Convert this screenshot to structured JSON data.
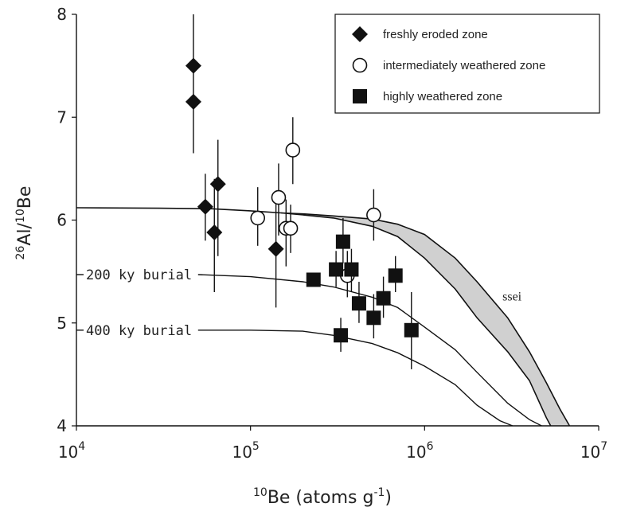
{
  "chart_data": {
    "type": "scatter",
    "xscale": "log",
    "xlim": [
      10000,
      10000000
    ],
    "ylim": [
      4,
      8
    ],
    "xlabel": {
      "base": "Be (atoms g",
      "mass": "10",
      "exp": "-1",
      "close": ")"
    },
    "ylabel": {
      "num_mass": "26",
      "num_el": "Al/",
      "den_mass": "10",
      "den_el": "Be"
    },
    "xticks": [
      {
        "value": 10000,
        "base": "10",
        "exp": "4"
      },
      {
        "value": 100000,
        "base": "10",
        "exp": "5"
      },
      {
        "value": 1000000,
        "base": "10",
        "exp": "6"
      },
      {
        "value": 10000000,
        "base": "10",
        "exp": "7"
      }
    ],
    "yticks": [
      {
        "value": 4,
        "label": "4"
      },
      {
        "value": 5,
        "label": "5"
      },
      {
        "value": 6,
        "label": "6"
      },
      {
        "value": 7,
        "label": "7"
      },
      {
        "value": 8,
        "label": "8"
      }
    ],
    "legend": {
      "position": "top-right",
      "entries": [
        {
          "marker": "diamond",
          "label": "freshly eroded zone"
        },
        {
          "marker": "open-circle",
          "label": "intermediately weathered zone"
        },
        {
          "marker": "square",
          "label": "highly weathered zone"
        }
      ]
    },
    "annotations": {
      "burial200": "200 ky burial",
      "burial400": "400 ky burial",
      "ssei": "ssei"
    },
    "curves": {
      "ssei_upper": [
        [
          10000,
          6.12
        ],
        [
          30000,
          6.115
        ],
        [
          60000,
          6.11
        ],
        [
          100000,
          6.09
        ],
        [
          150000,
          6.07
        ],
        [
          200000,
          6.05
        ],
        [
          300000,
          6.02
        ],
        [
          500000,
          5.94
        ],
        [
          700000,
          5.84
        ],
        [
          1000000,
          5.63
        ],
        [
          1500000,
          5.33
        ],
        [
          2000000,
          5.05
        ],
        [
          3000000,
          4.72
        ],
        [
          4000000,
          4.44
        ],
        [
          5000000,
          4.08
        ],
        [
          5300000,
          4.0
        ]
      ],
      "ssei_lower": [
        [
          150000,
          6.07
        ],
        [
          200000,
          6.06
        ],
        [
          300000,
          6.04
        ],
        [
          500000,
          6.01
        ],
        [
          700000,
          5.96
        ],
        [
          1000000,
          5.86
        ],
        [
          1500000,
          5.63
        ],
        [
          2000000,
          5.4
        ],
        [
          3000000,
          5.05
        ],
        [
          4000000,
          4.72
        ],
        [
          5000000,
          4.42
        ],
        [
          6000000,
          4.16
        ],
        [
          6800000,
          4.0
        ]
      ],
      "burial200": [
        [
          50000,
          5.47
        ],
        [
          100000,
          5.45
        ],
        [
          200000,
          5.4
        ],
        [
          300000,
          5.35
        ],
        [
          500000,
          5.25
        ],
        [
          700000,
          5.15
        ],
        [
          1000000,
          4.96
        ],
        [
          1500000,
          4.74
        ],
        [
          2000000,
          4.52
        ],
        [
          3000000,
          4.22
        ],
        [
          4000000,
          4.06
        ],
        [
          4700000,
          4.0
        ]
      ],
      "burial400": [
        [
          50000,
          4.93
        ],
        [
          100000,
          4.93
        ],
        [
          200000,
          4.92
        ],
        [
          300000,
          4.88
        ],
        [
          500000,
          4.8
        ],
        [
          700000,
          4.71
        ],
        [
          1000000,
          4.58
        ],
        [
          1500000,
          4.4
        ],
        [
          2000000,
          4.2
        ],
        [
          2700000,
          4.05
        ],
        [
          3200000,
          4.0
        ]
      ]
    },
    "series": [
      {
        "name": "freshly eroded zone",
        "marker": "diamond",
        "points": [
          {
            "x": 47000,
            "y": 7.5,
            "ylo": 6.65,
            "yhi": 8.0
          },
          {
            "x": 47000,
            "y": 7.15
          },
          {
            "x": 55000,
            "y": 6.13,
            "ylo": 5.8,
            "yhi": 6.45
          },
          {
            "x": 62000,
            "y": 5.88,
            "ylo": 5.3,
            "yhi": 6.4
          },
          {
            "x": 65000,
            "y": 6.35,
            "ylo": 5.65,
            "yhi": 6.78
          },
          {
            "x": 140000,
            "y": 5.72,
            "ylo": 5.15,
            "yhi": 6.25
          }
        ]
      },
      {
        "name": "intermediately weathered zone",
        "marker": "open-circle",
        "points": [
          {
            "x": 110000,
            "y": 6.02,
            "ylo": 5.75,
            "yhi": 6.32
          },
          {
            "x": 145000,
            "y": 6.22,
            "ylo": 5.85,
            "yhi": 6.55
          },
          {
            "x": 160000,
            "y": 5.92,
            "ylo": 5.55,
            "yhi": 6.2
          },
          {
            "x": 170000,
            "y": 5.92,
            "ylo": 5.68,
            "yhi": 6.15
          },
          {
            "x": 175000,
            "y": 6.68,
            "ylo": 6.35,
            "yhi": 7.0
          },
          {
            "x": 360000,
            "y": 5.46,
            "ylo": 5.25,
            "yhi": 5.7
          },
          {
            "x": 510000,
            "y": 6.05,
            "ylo": 5.8,
            "yhi": 6.3
          }
        ]
      },
      {
        "name": "highly weathered zone",
        "marker": "square",
        "points": [
          {
            "x": 230000,
            "y": 5.42
          },
          {
            "x": 310000,
            "y": 5.52,
            "ylo": 5.35,
            "yhi": 5.7
          },
          {
            "x": 340000,
            "y": 5.79,
            "ylo": 5.58,
            "yhi": 6.02
          },
          {
            "x": 380000,
            "y": 5.52,
            "ylo": 5.3,
            "yhi": 5.72
          },
          {
            "x": 420000,
            "y": 5.19,
            "ylo": 5.0,
            "yhi": 5.4
          },
          {
            "x": 330000,
            "y": 4.88,
            "ylo": 4.72,
            "yhi": 5.05
          },
          {
            "x": 510000,
            "y": 5.05,
            "ylo": 4.85,
            "yhi": 5.28
          },
          {
            "x": 580000,
            "y": 5.24,
            "ylo": 5.05,
            "yhi": 5.45
          },
          {
            "x": 680000,
            "y": 5.46,
            "ylo": 5.3,
            "yhi": 5.65
          },
          {
            "x": 840000,
            "y": 4.93,
            "ylo": 4.55,
            "yhi": 5.3
          }
        ]
      }
    ],
    "colors": {
      "ssei_fill": "#d0d0d0",
      "marker": "#111111",
      "line": "#111111"
    }
  }
}
